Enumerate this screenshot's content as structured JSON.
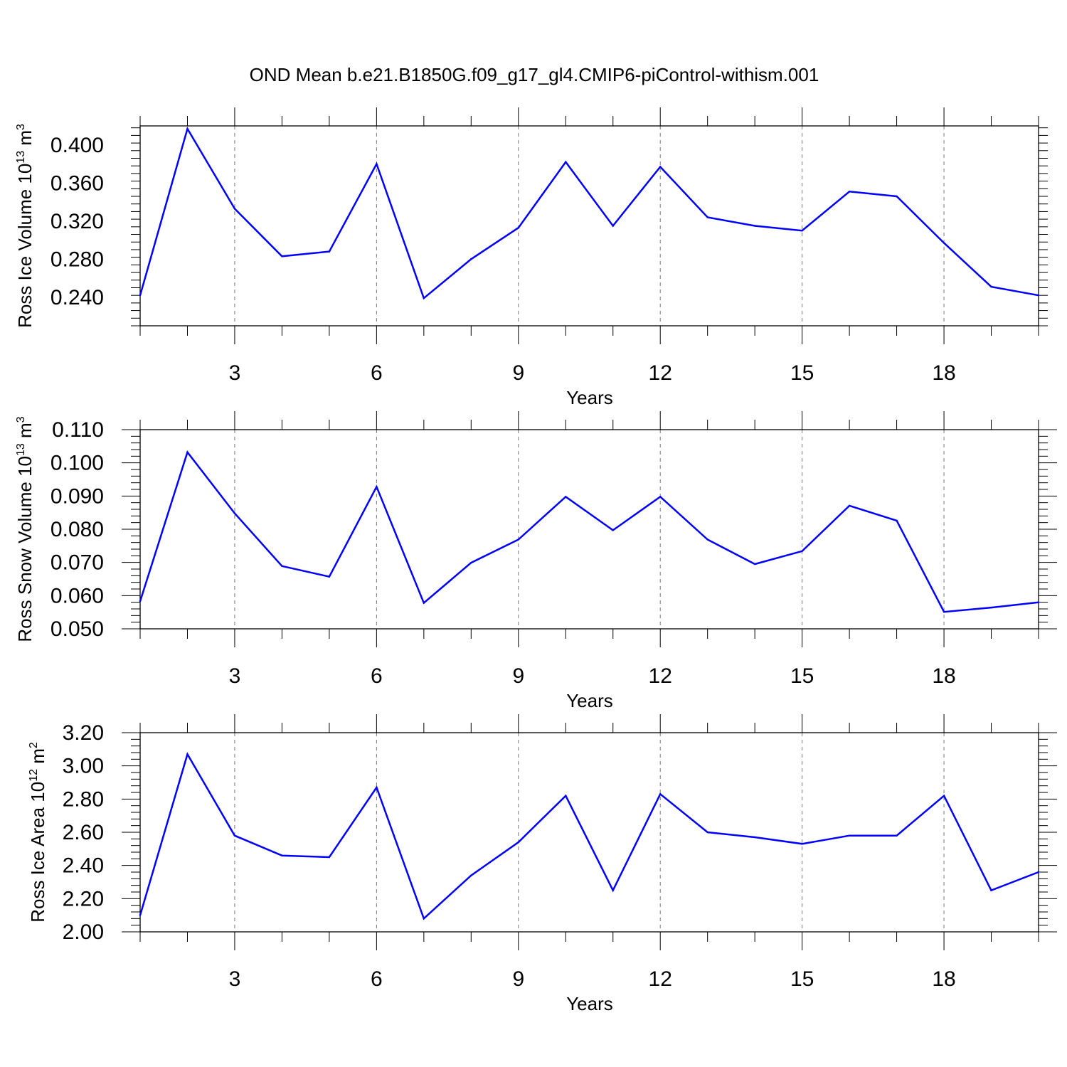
{
  "title": "OND Mean b.e21.B1850G.f09_g17_gl4.CMIP6-piControl-withism.001",
  "colors": {
    "line": "#0000ff",
    "axis": "#000000",
    "grid": "#777777"
  },
  "chart_data": [
    {
      "type": "line",
      "ylabel": {
        "text": "Ross Ice Volume 10",
        "exp": "13",
        "unit": " m",
        "unit_exp": "3"
      },
      "xlabel": "Years",
      "xlim": [
        1,
        20
      ],
      "ylim": [
        0.21,
        0.42
      ],
      "yticks": [
        0.24,
        0.28,
        0.32,
        0.36,
        0.4
      ],
      "yticklabels": [
        "0.240",
        "0.280",
        "0.320",
        "0.360",
        "0.400"
      ],
      "xticks": [
        3,
        6,
        9,
        12,
        15,
        18
      ],
      "xticklabels": [
        "3",
        "6",
        "9",
        "12",
        "15",
        "18"
      ],
      "grid": "vertical dashed at major x ticks",
      "x": [
        1,
        2,
        3,
        4,
        5,
        6,
        7,
        8,
        9,
        10,
        11,
        12,
        13,
        14,
        15,
        16,
        17,
        18,
        19,
        20
      ],
      "y": [
        0.242,
        0.417,
        0.333,
        0.283,
        0.288,
        0.38,
        0.239,
        0.28,
        0.313,
        0.382,
        0.315,
        0.377,
        0.324,
        0.315,
        0.31,
        0.351,
        0.346,
        0.297,
        0.251,
        0.242
      ]
    },
    {
      "type": "line",
      "ylabel": {
        "text": "Ross Snow Volume 10",
        "exp": "13",
        "unit": " m",
        "unit_exp": "3"
      },
      "xlabel": "Years",
      "xlim": [
        1,
        20
      ],
      "ylim": [
        0.05,
        0.11
      ],
      "yticks": [
        0.05,
        0.06,
        0.07,
        0.08,
        0.09,
        0.1,
        0.11
      ],
      "yticklabels": [
        "0.050",
        "0.060",
        "0.070",
        "0.080",
        "0.090",
        "0.100",
        "0.110"
      ],
      "xticks": [
        3,
        6,
        9,
        12,
        15,
        18
      ],
      "xticklabels": [
        "3",
        "6",
        "9",
        "12",
        "15",
        "18"
      ],
      "grid": "vertical dashed at major x ticks",
      "x": [
        1,
        2,
        3,
        4,
        5,
        6,
        7,
        8,
        9,
        10,
        11,
        12,
        13,
        14,
        15,
        16,
        17,
        18,
        19,
        20
      ],
      "y": [
        0.0583,
        0.1032,
        0.0848,
        0.0689,
        0.0657,
        0.0928,
        0.0578,
        0.0699,
        0.0769,
        0.0898,
        0.0797,
        0.0898,
        0.0769,
        0.0695,
        0.0734,
        0.0871,
        0.0826,
        0.0551,
        0.0564,
        0.058
      ]
    },
    {
      "type": "line",
      "ylabel": {
        "text": "Ross Ice Area 10",
        "exp": "12",
        "unit": " m",
        "unit_exp": "2"
      },
      "xlabel": "Years",
      "xlim": [
        1,
        20
      ],
      "ylim": [
        2.0,
        3.2
      ],
      "yticks": [
        2.0,
        2.2,
        2.4,
        2.6,
        2.8,
        3.0,
        3.2
      ],
      "yticklabels": [
        "2.00",
        "2.20",
        "2.40",
        "2.60",
        "2.80",
        "3.00",
        "3.20"
      ],
      "xticks": [
        3,
        6,
        9,
        12,
        15,
        18
      ],
      "xticklabels": [
        "3",
        "6",
        "9",
        "12",
        "15",
        "18"
      ],
      "grid": "vertical dashed at major x ticks",
      "x": [
        1,
        2,
        3,
        4,
        5,
        6,
        7,
        8,
        9,
        10,
        11,
        12,
        13,
        14,
        15,
        16,
        17,
        18,
        19,
        20
      ],
      "y": [
        2.1,
        3.07,
        2.58,
        2.46,
        2.45,
        2.87,
        2.08,
        2.34,
        2.54,
        2.82,
        2.25,
        2.83,
        2.6,
        2.57,
        2.53,
        2.58,
        2.58,
        2.82,
        2.25,
        2.36
      ]
    }
  ]
}
